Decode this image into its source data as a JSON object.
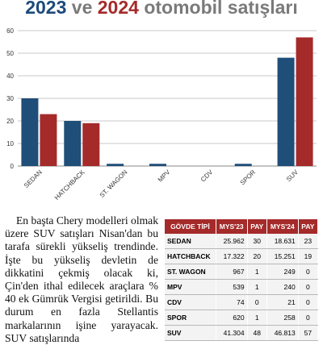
{
  "header": {
    "top_text": "",
    "y2023": "2023",
    "ve": "ve",
    "y2024": "2024",
    "rest": "otomobil satışları"
  },
  "chart_data": {
    "type": "bar",
    "categories": [
      "SEDAN",
      "HATCHBACK",
      "ST. WAGON",
      "MPV",
      "CDV",
      "SPOR",
      "SUV"
    ],
    "series": [
      {
        "name": "",
        "color": "#1f4e79",
        "values": [
          30,
          20,
          1,
          1,
          0,
          1,
          48
        ]
      },
      {
        "name": "",
        "color": "#a52a2a",
        "values": [
          23,
          19,
          0,
          0,
          0,
          0,
          57
        ]
      }
    ],
    "ylim": [
      0,
      60
    ],
    "yticks": [
      0,
      10,
      20,
      30,
      40,
      50,
      60
    ],
    "ytick_labels": [
      "0",
      "10",
      "20",
      "30",
      "40",
      "50",
      "60"
    ],
    "grid": true,
    "title": "",
    "xlabel": "",
    "ylabel": ""
  },
  "article": {
    "text": "En başta Chery modelleri olmak üzere SUV satışları Nisan'dan bu tarafa sürekli yükseliş trendinde. İşte bu yükseliş devletin de dikkatini çekmiş olacak ki, Çin'den ithal edilecek araçlara % 40 ek Gümrük Vergisi getirildi. Bu durum en fazla Stellantis markalarının işine yarayacak. SUV satışlarında"
  },
  "table": {
    "headers": [
      "GÖVDE TİPİ",
      "MYS'23",
      "PAY",
      "MYS'24",
      "PAY"
    ],
    "rows": [
      [
        "SEDAN",
        "25.962",
        "30",
        "18.631",
        "23"
      ],
      [
        "HATCHBACK",
        "17.322",
        "20",
        "15.251",
        "19"
      ],
      [
        "ST. WAGON",
        "967",
        "1",
        "249",
        "0"
      ],
      [
        "MPV",
        "539",
        "1",
        "240",
        "0"
      ],
      [
        "CDV",
        "74",
        "0",
        "21",
        "0"
      ],
      [
        "SPOR",
        "620",
        "1",
        "258",
        "0"
      ],
      [
        "SUV",
        "41.304",
        "48",
        "46.813",
        "57"
      ]
    ]
  }
}
